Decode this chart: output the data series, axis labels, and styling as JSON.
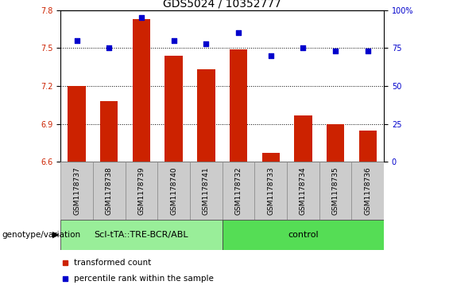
{
  "title": "GDS5024 / 10352777",
  "samples": [
    "GSM1178737",
    "GSM1178738",
    "GSM1178739",
    "GSM1178740",
    "GSM1178741",
    "GSM1178732",
    "GSM1178733",
    "GSM1178734",
    "GSM1178735",
    "GSM1178736"
  ],
  "bar_values": [
    7.2,
    7.08,
    7.73,
    7.44,
    7.33,
    7.49,
    6.67,
    6.97,
    6.9,
    6.85
  ],
  "percentile_values": [
    80,
    75,
    95,
    80,
    78,
    85,
    70,
    75,
    73,
    73
  ],
  "bar_color": "#cc2200",
  "dot_color": "#0000cc",
  "ylim_left": [
    6.6,
    7.8
  ],
  "ylim_right": [
    0,
    100
  ],
  "yticks_left": [
    6.6,
    6.9,
    7.2,
    7.5,
    7.8
  ],
  "yticks_right": [
    0,
    25,
    50,
    75,
    100
  ],
  "ytick_labels_right": [
    "0",
    "25",
    "50",
    "75",
    "100%"
  ],
  "group1_label": "ScI-tTA::TRE-BCR/ABL",
  "group2_label": "control",
  "group1_count": 5,
  "group2_count": 5,
  "group1_color": "#99ee99",
  "group2_color": "#55dd55",
  "xlabel_genotype": "genotype/variation",
  "legend_bar": "transformed count",
  "legend_dot": "percentile rank within the sample",
  "bar_width": 0.55,
  "plot_bg_color": "#ffffff",
  "sample_box_color": "#cccccc",
  "title_fontsize": 10,
  "tick_fontsize": 7,
  "sample_fontsize": 6.5,
  "legend_fontsize": 7.5,
  "geno_fontsize": 8
}
